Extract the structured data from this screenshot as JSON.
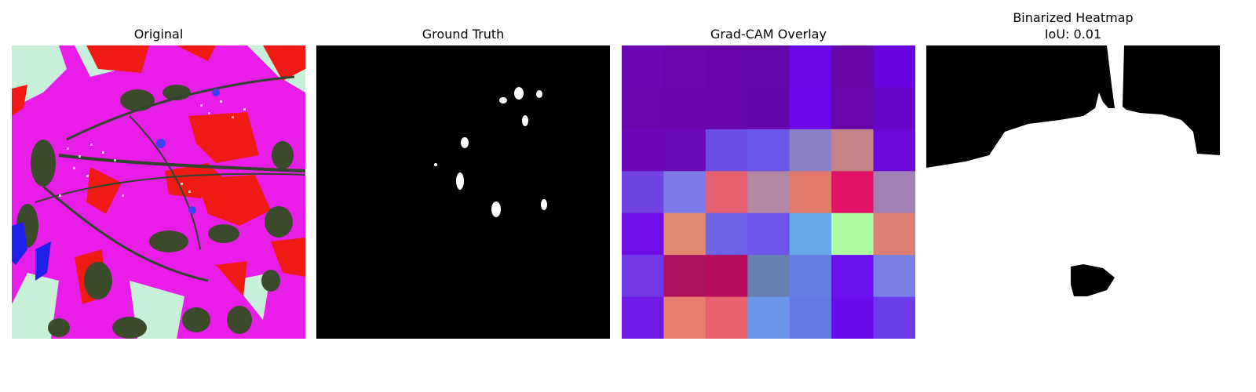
{
  "panels": [
    {
      "title": "Original"
    },
    {
      "title": "Ground Truth"
    },
    {
      "title": "Grad-CAM Overlay"
    },
    {
      "title": "Binarized Heatmap",
      "subtitle": "IoU: 0.01"
    }
  ],
  "gradcam_grid": [
    [
      "#6a09b2",
      "#6808aa",
      "#6706a8",
      "#6506a8",
      "#6a08e5",
      "#6707a6",
      "#6a06df"
    ],
    [
      "#6907ad",
      "#6806aa",
      "#6706a8",
      "#6405a8",
      "#6c09ea",
      "#6a07a8",
      "#6807c9"
    ],
    [
      "#6d08b8",
      "#6a0bb5",
      "#6b4fe5",
      "#6a57e8",
      "#8c80c4",
      "#c48385",
      "#6a0ad6"
    ],
    [
      "#7142e2",
      "#7c79e8",
      "#e66070",
      "#b287a6",
      "#e27a6b",
      "#e11266",
      "#a182b4"
    ],
    [
      "#7110e6",
      "#e1896f",
      "#7063e6",
      "#6e55ea",
      "#69a8e8",
      "#aefda1",
      "#dd7e74"
    ],
    [
      "#7338e6",
      "#ae1060",
      "#b60b5a",
      "#6780b1",
      "#657ee6",
      "#6a10ec",
      "#7a80e3"
    ],
    [
      "#6f1ce6",
      "#e77e6d",
      "#e6606e",
      "#6b98ea",
      "#6678e6",
      "#6b0bec",
      "#6c3de8"
    ]
  ]
}
